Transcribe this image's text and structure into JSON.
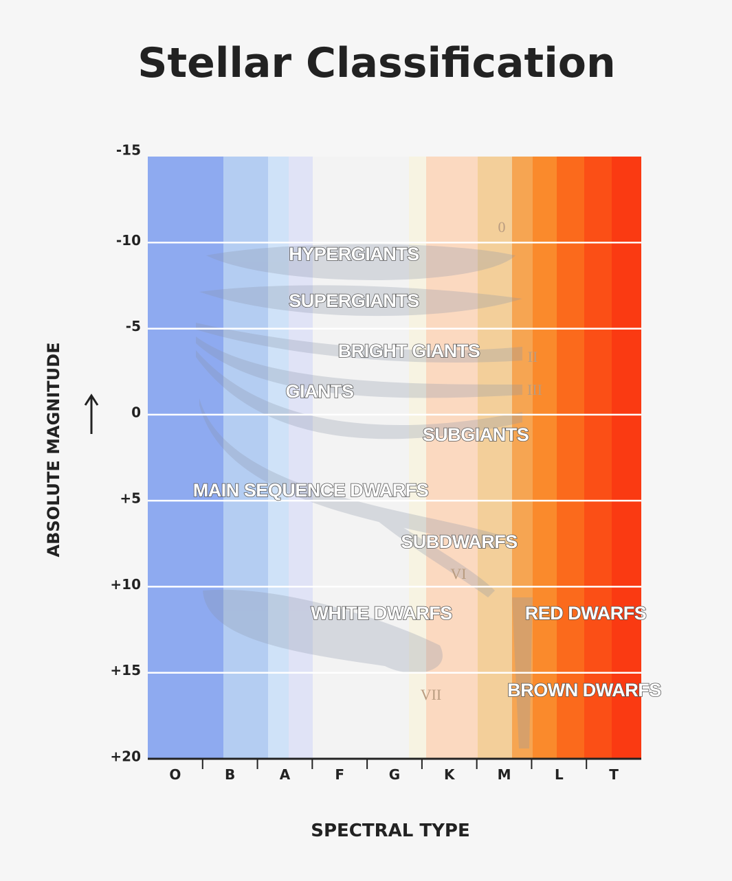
{
  "title": "Stellar Classification",
  "y_axis": {
    "label": "ABSOLUTE MAGNITUDE",
    "ticks": [
      "-15",
      "-10",
      "-5",
      "0",
      "+5",
      "+10",
      "+15",
      "+20"
    ]
  },
  "x_axis": {
    "label": "SPECTRAL TYPE",
    "categories": [
      "O",
      "B",
      "A",
      "F",
      "G",
      "K",
      "M",
      "L",
      "T"
    ]
  },
  "regions": [
    "HYPERGIANTS",
    "SUPERGIANTS",
    "BRIGHT GIANTS",
    "GIANTS",
    "SUBGIANTS",
    "MAIN SEQUENCE DWARFS",
    "SUBDWARFS",
    "WHITE DWARFS",
    "RED DWARFS",
    "BROWN DWARFS"
  ],
  "luminosity_classes": [
    "0",
    "II",
    "III",
    "VI",
    "VII"
  ]
}
